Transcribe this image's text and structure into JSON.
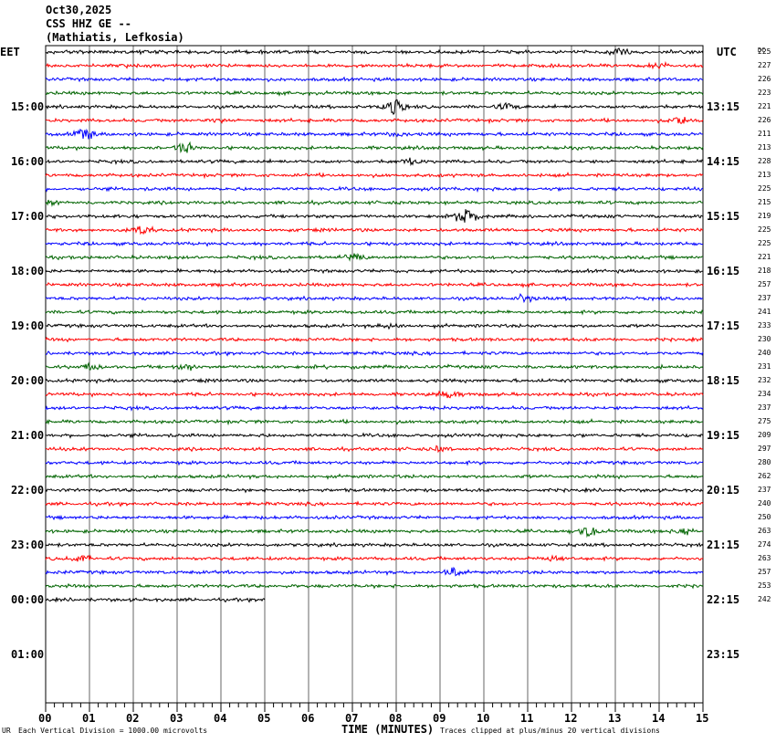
{
  "header": {
    "date": "Oct30,2025",
    "station": "CSS HHZ GE --",
    "location": "(Mathiatis, Lefkosia)"
  },
  "left_zone": "EET",
  "right_zone": "UTC",
  "dc_heading": "DC",
  "footer": {
    "corner": "UR",
    "scale_note": "Each Vertical Division = 1000.00 microvolts",
    "xlabel": "TIME (MINUTES)",
    "clip_note": "Traces clipped at plus/minus 20 vertical divisions"
  },
  "colors": {
    "frame": "#000000",
    "grid": "#000000",
    "traces": [
      "#000000",
      "#ff0000",
      "#0000ff",
      "#006400"
    ]
  },
  "chart_data": {
    "type": "line",
    "title": "CSS HHZ GE --",
    "xlabel": "TIME (MINUTES)",
    "x_ticks": [
      "00",
      "01",
      "02",
      "03",
      "04",
      "05",
      "06",
      "07",
      "08",
      "09",
      "10",
      "11",
      "12",
      "13",
      "14",
      "15"
    ],
    "xlim": [
      0,
      15
    ],
    "minutes_per_trace": 15,
    "trace_count_total": 48,
    "left_hour_labels": [
      "15:00",
      "16:00",
      "17:00",
      "18:00",
      "19:00",
      "20:00",
      "21:00",
      "22:00",
      "23:00",
      "00:00",
      "01:00"
    ],
    "right_hour_labels": [
      "13:15",
      "14:15",
      "15:15",
      "16:15",
      "17:15",
      "18:15",
      "19:15",
      "20:15",
      "21:15",
      "22:15",
      "23:15"
    ],
    "traces": [
      {
        "dc": "225",
        "end_minute": 15
      },
      {
        "dc": "227",
        "end_minute": 15
      },
      {
        "dc": "226",
        "end_minute": 15
      },
      {
        "dc": "223",
        "end_minute": 15
      },
      {
        "dc": "221",
        "end_minute": 15
      },
      {
        "dc": "226",
        "end_minute": 15
      },
      {
        "dc": "211",
        "end_minute": 15
      },
      {
        "dc": "213",
        "end_minute": 15
      },
      {
        "dc": "228",
        "end_minute": 15
      },
      {
        "dc": "213",
        "end_minute": 15
      },
      {
        "dc": "225",
        "end_minute": 15
      },
      {
        "dc": "215",
        "end_minute": 15
      },
      {
        "dc": "219",
        "end_minute": 15
      },
      {
        "dc": "225",
        "end_minute": 15
      },
      {
        "dc": "225",
        "end_minute": 15
      },
      {
        "dc": "221",
        "end_minute": 15
      },
      {
        "dc": "218",
        "end_minute": 15
      },
      {
        "dc": "257",
        "end_minute": 15
      },
      {
        "dc": "237",
        "end_minute": 15
      },
      {
        "dc": "241",
        "end_minute": 15
      },
      {
        "dc": "233",
        "end_minute": 15
      },
      {
        "dc": "230",
        "end_minute": 15
      },
      {
        "dc": "240",
        "end_minute": 15
      },
      {
        "dc": "231",
        "end_minute": 15
      },
      {
        "dc": "232",
        "end_minute": 15
      },
      {
        "dc": "234",
        "end_minute": 15
      },
      {
        "dc": "237",
        "end_minute": 15
      },
      {
        "dc": "275",
        "end_minute": 15
      },
      {
        "dc": "209",
        "end_minute": 15
      },
      {
        "dc": "297",
        "end_minute": 15
      },
      {
        "dc": "280",
        "end_minute": 15
      },
      {
        "dc": "262",
        "end_minute": 15
      },
      {
        "dc": "237",
        "end_minute": 15
      },
      {
        "dc": "240",
        "end_minute": 15
      },
      {
        "dc": "250",
        "end_minute": 15
      },
      {
        "dc": "263",
        "end_minute": 15
      },
      {
        "dc": "274",
        "end_minute": 15
      },
      {
        "dc": "263",
        "end_minute": 15
      },
      {
        "dc": "257",
        "end_minute": 15
      },
      {
        "dc": "253",
        "end_minute": 15
      },
      {
        "dc": "242",
        "end_minute": 5
      }
    ],
    "events": [
      {
        "trace": 0,
        "minute": 13.1,
        "amp": 5
      },
      {
        "trace": 0,
        "minute": 2.1,
        "amp": 3
      },
      {
        "trace": 1,
        "minute": 14.0,
        "amp": 3
      },
      {
        "trace": 4,
        "minute": 7.95,
        "amp": 9
      },
      {
        "trace": 4,
        "minute": 10.5,
        "amp": 4
      },
      {
        "trace": 5,
        "minute": 14.5,
        "amp": 6
      },
      {
        "trace": 5,
        "minute": 3.9,
        "amp": 3
      },
      {
        "trace": 6,
        "minute": 0.9,
        "amp": 7
      },
      {
        "trace": 6,
        "minute": 8.0,
        "amp": 3
      },
      {
        "trace": 7,
        "minute": 3.2,
        "amp": 6
      },
      {
        "trace": 8,
        "minute": 8.3,
        "amp": 4
      },
      {
        "trace": 11,
        "minute": 0.2,
        "amp": 3
      },
      {
        "trace": 12,
        "minute": 9.6,
        "amp": 10
      },
      {
        "trace": 13,
        "minute": 2.2,
        "amp": 6
      },
      {
        "trace": 15,
        "minute": 7.0,
        "amp": 4
      },
      {
        "trace": 18,
        "minute": 10.9,
        "amp": 5
      },
      {
        "trace": 20,
        "minute": 7.9,
        "amp": 3
      },
      {
        "trace": 23,
        "minute": 1.0,
        "amp": 4
      },
      {
        "trace": 23,
        "minute": 3.2,
        "amp": 4
      },
      {
        "trace": 25,
        "minute": 9.2,
        "amp": 5
      },
      {
        "trace": 29,
        "minute": 9.0,
        "amp": 3
      },
      {
        "trace": 35,
        "minute": 12.4,
        "amp": 6
      },
      {
        "trace": 35,
        "minute": 14.6,
        "amp": 4
      },
      {
        "trace": 37,
        "minute": 0.8,
        "amp": 5
      },
      {
        "trace": 37,
        "minute": 11.6,
        "amp": 3
      },
      {
        "trace": 38,
        "minute": 9.3,
        "amp": 5
      }
    ]
  }
}
